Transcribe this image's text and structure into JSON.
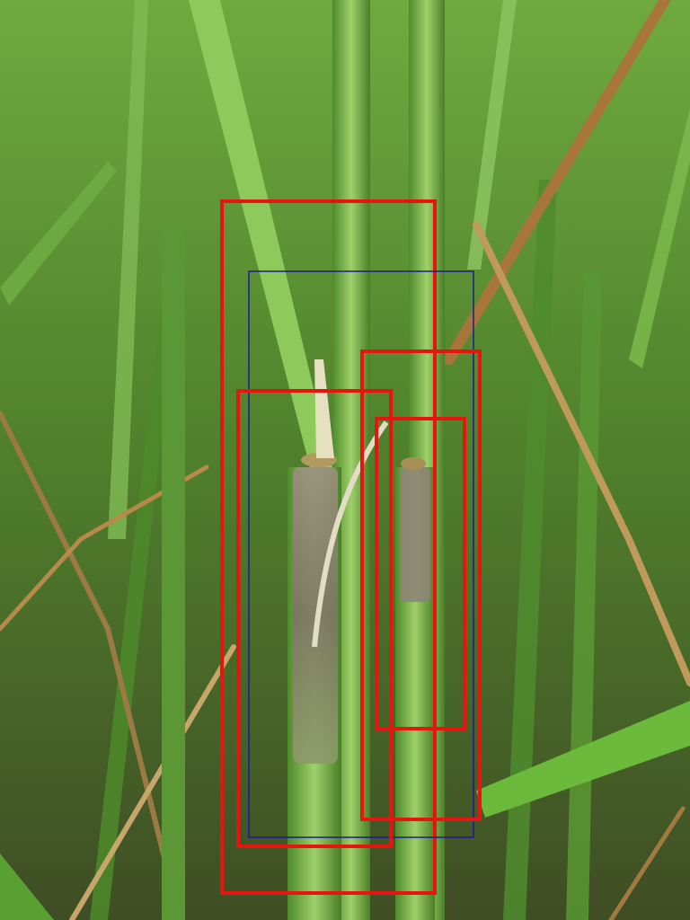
{
  "scene": {
    "subject": "rice-stems-with-sheath-lesions",
    "colors": {
      "foliage_dark": "#2f5a1e",
      "foliage_mid": "#5e9a36",
      "foliage_light": "#9ccf6a",
      "straw": "#b08a4a",
      "lesion": "#8a7f70",
      "box_red": "#e8140f",
      "box_blue": "#1a1a9a"
    }
  },
  "annotations": [
    {
      "label": "",
      "color": "#e8140f"
    },
    {
      "label": "",
      "color": "#1a1a9a"
    },
    {
      "label": "",
      "color": "#e8140f"
    },
    {
      "label": "",
      "color": "#e8140f"
    },
    {
      "label": "",
      "color": "#e8140f"
    }
  ]
}
